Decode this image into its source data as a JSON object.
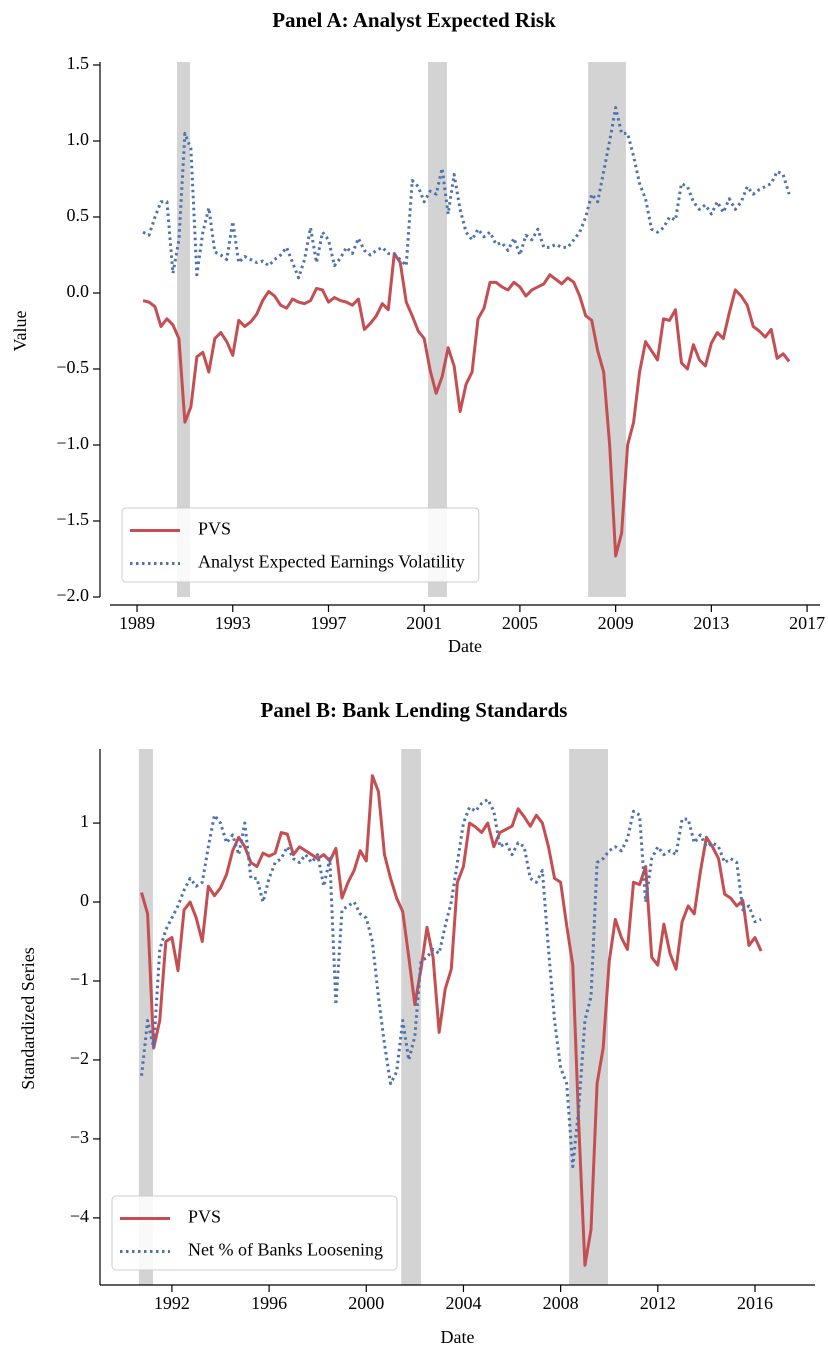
{
  "chart_data": [
    {
      "type": "line",
      "title": "Panel A: Analyst Expected Risk",
      "x_label": "Date",
      "y_label": "Value",
      "xlim": [
        1987.87,
        2017.54
      ],
      "ylim": [
        -2.0,
        1.5
      ],
      "xticks": [
        1989,
        1993,
        1997,
        2001,
        2005,
        2009,
        2013,
        2017
      ],
      "yticks": [
        1.5,
        {
          "value": 1,
          "label": "1.0"
        },
        0.5,
        {
          "value": 0,
          "label": "0.0"
        },
        {
          "value": -0.5,
          "label": "−0.5"
        },
        {
          "value": -1,
          "label": "−1.0"
        },
        {
          "value": -1.5,
          "label": "−1.5"
        },
        {
          "value": -2,
          "label": "−2.0"
        }
      ],
      "legend": "lower left",
      "shade_color": "#d3d3d3",
      "shaded_spans": [
        [
          1990.67,
          1991.21
        ],
        [
          2001.16,
          2001.95
        ],
        [
          2007.85,
          2009.43
        ]
      ],
      "x": [
        1989.25,
        1989.5,
        1989.75,
        1990,
        1990.25,
        1990.5,
        1990.75,
        1991,
        1991.25,
        1991.5,
        1991.75,
        1992,
        1992.25,
        1992.5,
        1992.75,
        1993,
        1993.25,
        1993.5,
        1993.75,
        1994,
        1994.25,
        1994.5,
        1994.75,
        1995,
        1995.25,
        1995.5,
        1995.75,
        1996,
        1996.25,
        1996.5,
        1996.75,
        1997,
        1997.25,
        1997.5,
        1997.75,
        1998,
        1998.25,
        1998.5,
        1998.75,
        1999,
        1999.25,
        1999.5,
        1999.75,
        2000,
        2000.25,
        2000.5,
        2000.75,
        2001,
        2001.25,
        2001.5,
        2001.75,
        2002,
        2002.25,
        2002.5,
        2002.75,
        2003,
        2003.25,
        2003.5,
        2003.75,
        2004,
        2004.25,
        2004.5,
        2004.75,
        2005,
        2005.25,
        2005.5,
        2005.75,
        2006,
        2006.25,
        2006.5,
        2006.75,
        2007,
        2007.25,
        2007.5,
        2007.75,
        2008,
        2008.25,
        2008.5,
        2008.75,
        2009,
        2009.25,
        2009.5,
        2009.75,
        2010,
        2010.25,
        2010.5,
        2010.75,
        2011,
        2011.25,
        2011.5,
        2011.75,
        2012,
        2012.25,
        2012.5,
        2012.75,
        2013,
        2013.25,
        2013.5,
        2013.75,
        2014,
        2014.25,
        2014.5,
        2014.75,
        2015,
        2015.25,
        2015.5,
        2015.75,
        2016,
        2016.25
      ],
      "series": [
        {
          "name": "PVS",
          "color": "#c44e52",
          "linestyle": "solid",
          "values": [
            -0.05,
            -0.06,
            -0.09,
            -0.22,
            -0.17,
            -0.21,
            -0.3,
            -0.85,
            -0.75,
            -0.42,
            -0.39,
            -0.52,
            -0.3,
            -0.26,
            -0.32,
            -0.41,
            -0.18,
            -0.22,
            -0.19,
            -0.14,
            -0.05,
            0.01,
            -0.02,
            -0.08,
            -0.1,
            -0.04,
            -0.06,
            -0.07,
            -0.05,
            0.03,
            0.02,
            -0.06,
            -0.03,
            -0.05,
            -0.06,
            -0.08,
            -0.04,
            -0.24,
            -0.2,
            -0.15,
            -0.07,
            -0.11,
            0.26,
            0.2,
            -0.06,
            -0.15,
            -0.25,
            -0.3,
            -0.51,
            -0.66,
            -0.55,
            -0.36,
            -0.48,
            -0.78,
            -0.6,
            -0.52,
            -0.17,
            -0.1,
            0.07,
            0.07,
            0.04,
            0.02,
            0.07,
            0.04,
            -0.02,
            0.02,
            0.04,
            0.06,
            0.12,
            0.09,
            0.06,
            0.1,
            0.07,
            -0.02,
            -0.15,
            -0.18,
            -0.38,
            -0.52,
            -1.0,
            -1.73,
            -1.58,
            -1.0,
            -0.85,
            -0.52,
            -0.32,
            -0.38,
            -0.44,
            -0.17,
            -0.18,
            -0.11,
            -0.46,
            -0.5,
            -0.34,
            -0.44,
            -0.48,
            -0.33,
            -0.26,
            -0.3,
            -0.13,
            0.02,
            -0.02,
            -0.08,
            -0.22,
            -0.25,
            -0.29,
            -0.24,
            -0.43,
            -0.4,
            -0.45
          ]
        },
        {
          "name": "Analyst Expected Earnings Volatility",
          "color": "#4c72b0",
          "linestyle": "dotted",
          "values": [
            0.4,
            0.38,
            0.5,
            0.6,
            0.6,
            0.13,
            0.35,
            1.05,
            0.95,
            0.12,
            0.4,
            0.56,
            0.27,
            0.25,
            0.22,
            0.47,
            0.2,
            0.24,
            0.22,
            0.2,
            0.21,
            0.18,
            0.22,
            0.25,
            0.3,
            0.2,
            0.1,
            0.22,
            0.43,
            0.2,
            0.4,
            0.35,
            0.18,
            0.23,
            0.3,
            0.26,
            0.36,
            0.28,
            0.25,
            0.28,
            0.3,
            0.26,
            0.25,
            0.22,
            0.18,
            0.74,
            0.7,
            0.6,
            0.67,
            0.65,
            0.82,
            0.52,
            0.78,
            0.55,
            0.4,
            0.35,
            0.42,
            0.37,
            0.4,
            0.32,
            0.33,
            0.28,
            0.36,
            0.25,
            0.38,
            0.35,
            0.42,
            0.3,
            0.3,
            0.32,
            0.3,
            0.3,
            0.35,
            0.4,
            0.5,
            0.65,
            0.6,
            0.8,
            1.0,
            1.22,
            1.05,
            1.05,
            0.9,
            0.72,
            0.62,
            0.42,
            0.4,
            0.43,
            0.5,
            0.48,
            0.72,
            0.7,
            0.6,
            0.55,
            0.58,
            0.52,
            0.6,
            0.53,
            0.62,
            0.55,
            0.6,
            0.7,
            0.65,
            0.68,
            0.7,
            0.72,
            0.8,
            0.78,
            0.65
          ]
        }
      ]
    },
    {
      "type": "line",
      "title": "Panel B: Bank Lending Standards",
      "x_label": "Date",
      "y_label": "Standardized Series",
      "xlim": [
        1989.04,
        2018.47
      ],
      "ylim": [
        -4.85,
        1.9
      ],
      "xticks": [
        1992,
        1996,
        2000,
        2004,
        2008,
        2012,
        2016
      ],
      "yticks": [
        1,
        0,
        {
          "value": -1,
          "label": "−1"
        },
        {
          "value": -2,
          "label": "−2"
        },
        {
          "value": -3,
          "label": "−3"
        },
        {
          "value": -4,
          "label": "−4"
        }
      ],
      "legend": "lower left",
      "shade_color": "#d3d3d3",
      "shaded_spans": [
        [
          1990.64,
          1991.22
        ],
        [
          2001.44,
          2002.25
        ],
        [
          2008.35,
          2009.95
        ]
      ],
      "x": [
        1990.75,
        1991,
        1991.25,
        1991.5,
        1991.75,
        1992,
        1992.25,
        1992.5,
        1992.75,
        1993,
        1993.25,
        1993.5,
        1993.75,
        1994,
        1994.25,
        1994.5,
        1994.75,
        1995,
        1995.25,
        1995.5,
        1995.75,
        1996,
        1996.25,
        1996.5,
        1996.75,
        1997,
        1997.25,
        1997.5,
        1997.75,
        1998,
        1998.25,
        1998.5,
        1998.75,
        1999,
        1999.25,
        1999.5,
        1999.75,
        2000,
        2000.25,
        2000.5,
        2000.75,
        2001,
        2001.25,
        2001.5,
        2001.75,
        2002,
        2002.25,
        2002.5,
        2002.75,
        2003,
        2003.25,
        2003.5,
        2003.75,
        2004,
        2004.25,
        2004.5,
        2004.75,
        2005,
        2005.25,
        2005.5,
        2005.75,
        2006,
        2006.25,
        2006.5,
        2006.75,
        2007,
        2007.25,
        2007.5,
        2007.75,
        2008,
        2008.25,
        2008.5,
        2008.75,
        2009,
        2009.25,
        2009.5,
        2009.75,
        2010,
        2010.25,
        2010.5,
        2010.75,
        2011,
        2011.25,
        2011.5,
        2011.75,
        2012,
        2012.25,
        2012.5,
        2012.75,
        2013,
        2013.25,
        2013.5,
        2013.75,
        2014,
        2014.25,
        2014.5,
        2014.75,
        2015,
        2015.25,
        2015.5,
        2015.75,
        2016,
        2016.25
      ],
      "series": [
        {
          "name": "PVS",
          "color": "#c44e52",
          "linestyle": "solid",
          "values": [
            0.12,
            -0.15,
            -1.85,
            -1.5,
            -0.5,
            -0.45,
            -0.87,
            -0.1,
            0.0,
            -0.2,
            -0.5,
            0.2,
            0.08,
            0.18,
            0.35,
            0.65,
            0.82,
            0.7,
            0.5,
            0.45,
            0.62,
            0.58,
            0.62,
            0.88,
            0.86,
            0.6,
            0.7,
            0.65,
            0.6,
            0.55,
            0.6,
            0.52,
            0.68,
            0.05,
            0.25,
            0.4,
            0.65,
            0.52,
            1.6,
            1.4,
            0.6,
            0.3,
            0.05,
            -0.12,
            -0.7,
            -1.3,
            -0.85,
            -0.32,
            -0.7,
            -1.65,
            -1.1,
            -0.85,
            0.25,
            0.45,
            1.0,
            0.95,
            0.88,
            1.0,
            0.7,
            0.88,
            0.92,
            0.96,
            1.18,
            1.08,
            0.96,
            1.1,
            1.0,
            0.7,
            0.3,
            0.25,
            -0.3,
            -0.8,
            -2.85,
            -4.6,
            -4.15,
            -2.3,
            -1.85,
            -0.75,
            -0.22,
            -0.45,
            -0.6,
            0.25,
            0.22,
            0.45,
            -0.7,
            -0.8,
            -0.28,
            -0.65,
            -0.85,
            -0.25,
            -0.05,
            -0.15,
            0.38,
            0.82,
            0.7,
            0.55,
            0.1,
            0.05,
            -0.05,
            0.02,
            -0.55,
            -0.45,
            -0.62
          ]
        },
        {
          "name": "Net % of Banks Loosening",
          "color": "#4c72b0",
          "linestyle": "dotted",
          "values": [
            -2.2,
            -1.5,
            -1.85,
            -0.6,
            -0.35,
            -0.2,
            -0.05,
            0.15,
            0.3,
            0.2,
            0.25,
            0.7,
            1.1,
            1.0,
            0.75,
            0.85,
            0.6,
            1.0,
            0.3,
            0.3,
            0.0,
            0.3,
            0.5,
            0.55,
            0.7,
            0.55,
            0.5,
            0.6,
            0.5,
            0.6,
            0.2,
            0.55,
            -1.3,
            -0.1,
            -0.05,
            0.0,
            -0.15,
            -0.2,
            -0.5,
            -1.2,
            -1.8,
            -2.3,
            -2.15,
            -1.5,
            -2.0,
            -1.7,
            -0.75,
            -0.7,
            -0.6,
            -0.65,
            -0.3,
            0.0,
            0.5,
            1.0,
            1.2,
            1.15,
            1.25,
            1.3,
            1.15,
            0.7,
            0.75,
            0.6,
            0.75,
            0.7,
            0.3,
            0.25,
            0.4,
            -0.6,
            -1.5,
            -2.1,
            -2.3,
            -3.35,
            -2.6,
            -1.5,
            -1.2,
            0.5,
            0.55,
            0.65,
            0.7,
            0.65,
            0.8,
            1.15,
            1.1,
            0.0,
            0.55,
            0.7,
            0.6,
            0.65,
            0.6,
            1.05,
            1.05,
            0.75,
            0.85,
            0.7,
            0.75,
            0.7,
            0.5,
            0.55,
            0.5,
            -0.1,
            -0.05,
            -0.25,
            -0.22
          ]
        }
      ]
    }
  ]
}
